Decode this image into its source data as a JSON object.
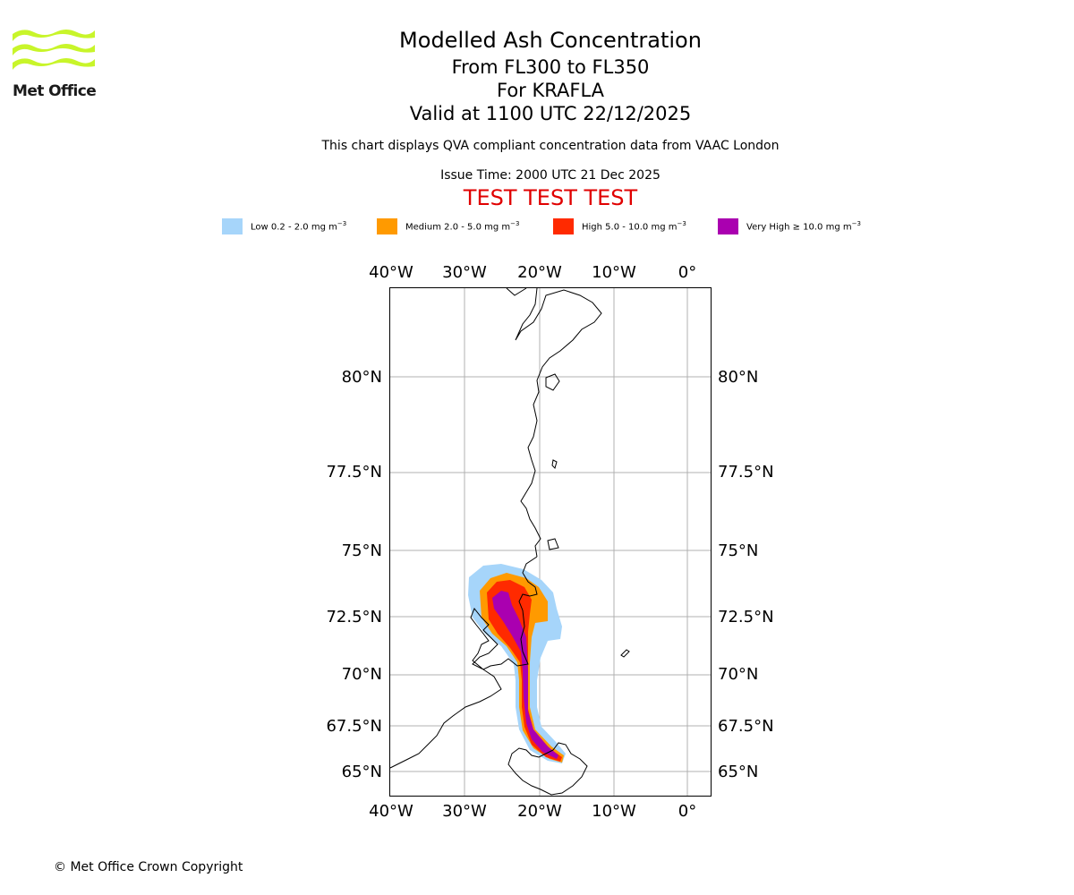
{
  "logo": {
    "name": "Met Office"
  },
  "header": {
    "title": "Modelled Ash Concentration",
    "levels": "From FL300 to FL350",
    "volcano": "For KRAFLA",
    "valid": "Valid at 1100 UTC 22/12/2025",
    "subtitle": "This chart displays QVA compliant concentration data from VAAC London",
    "issue_time": "Issue Time: 2000 UTC 21 Dec 2025",
    "test_banner": "TEST TEST TEST"
  },
  "legend": [
    {
      "label": "Low 0.2 - 2.0 mg m",
      "unit_exp": "−3",
      "color": "#a6d5fa"
    },
    {
      "label": "Medium 2.0 - 5.0 mg m",
      "unit_exp": "−3",
      "color": "#ff9a00"
    },
    {
      "label": "High 5.0 - 10.0 mg m",
      "unit_exp": "−3",
      "color": "#ff2a00"
    },
    {
      "label": "Very High  ≥  10.0 mg m",
      "unit_exp": "−3",
      "color": "#aa00b0"
    }
  ],
  "map": {
    "lon_labels": [
      "40°W",
      "30°W",
      "20°W",
      "10°W",
      "0°"
    ],
    "lat_labels": [
      "80°N",
      "77.5°N",
      "75°N",
      "72.5°N",
      "70°N",
      "67.5°N",
      "65°N"
    ],
    "grid": true
  },
  "footer": {
    "copyright": "© Met Office Crown Copyright"
  }
}
